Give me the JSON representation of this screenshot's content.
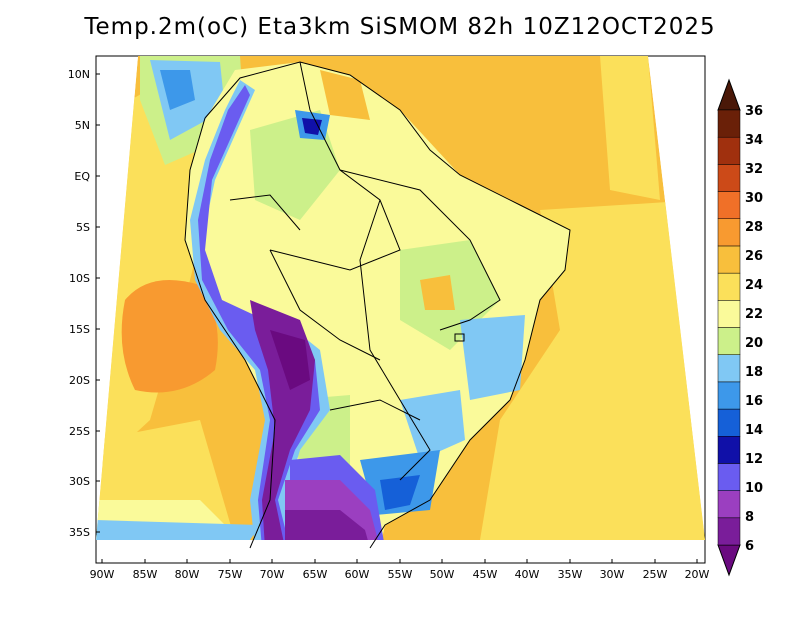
{
  "title": "Temp.2m(oC) Eta3km SiSMOM 82h 10Z12OCT2025",
  "map": {
    "variable": "Temp.2m",
    "units": "oC",
    "model": "Eta3km SiSMOM",
    "forecast_hour": "82h",
    "valid_time": "10Z12OCT2025",
    "lat_labels": [
      "10N",
      "5N",
      "EQ",
      "5S",
      "10S",
      "15S",
      "20S",
      "25S",
      "30S",
      "35S"
    ],
    "lon_labels": [
      "90W",
      "85W",
      "80W",
      "75W",
      "70W",
      "65W",
      "60W",
      "55W",
      "50W",
      "45W",
      "40W",
      "35W",
      "30W",
      "25W",
      "20W"
    ]
  },
  "colorbar": {
    "labels": [
      "6",
      "8",
      "10",
      "12",
      "14",
      "16",
      "18",
      "20",
      "22",
      "24",
      "26",
      "28",
      "30",
      "32",
      "34",
      "36"
    ],
    "colors": [
      "#7a1d9a",
      "#9b3fc0",
      "#6a5cf0",
      "#1010a8",
      "#1560d8",
      "#3d98ea",
      "#80c8f4",
      "#ccf08a",
      "#fafa9a",
      "#fbe05a",
      "#f8bf3c",
      "#f89a30",
      "#f07028",
      "#cc4a18",
      "#a0300e",
      "#6a2008"
    ],
    "low_color": "#6a0a80",
    "high_color": "#4a1808"
  }
}
